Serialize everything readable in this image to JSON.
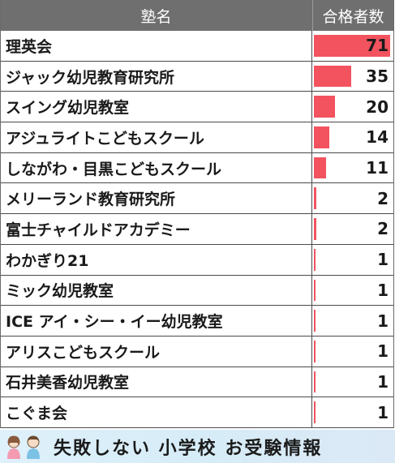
{
  "header": {
    "name_label": "塾名",
    "count_label": "合格者数"
  },
  "max_value": 71,
  "bar_color": "#f2535f",
  "rows": [
    {
      "name": "理英会",
      "value": 71
    },
    {
      "name": "ジャック幼児教育研究所",
      "value": 35
    },
    {
      "name": "スイング幼児教室",
      "value": 20
    },
    {
      "name": "アジュライトこどもスクール",
      "value": 14
    },
    {
      "name": "しながわ・目黒こどもスクール",
      "value": 11
    },
    {
      "name": "メリーランド教育研究所",
      "value": 2
    },
    {
      "name": "富士チャイルドアカデミー",
      "value": 2
    },
    {
      "name": "わかぎり21",
      "value": 1
    },
    {
      "name": "ミック幼児教室",
      "value": 1
    },
    {
      "name": "ICE アイ・シー・イー幼児教室",
      "value": 1
    },
    {
      "name": "アリスこどもスクール",
      "value": 1
    },
    {
      "name": "石井美香幼児教室",
      "value": 1
    },
    {
      "name": "こぐま会",
      "value": 1
    }
  ],
  "footer": {
    "banner_text": "失敗しない 小学校 お受験情報",
    "icons": [
      "girl-icon",
      "boy-icon"
    ]
  }
}
